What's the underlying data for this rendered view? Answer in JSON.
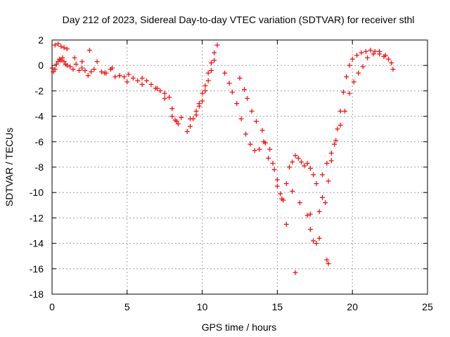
{
  "chart_data": {
    "type": "scatter",
    "title": "Day 212 of 2023, Sidereal Day-to-day VTEC variation (SDTVAR) for receiver sthl",
    "xlabel": "GPS time / hours",
    "ylabel": "SDTVAR / TECUs",
    "xlim": [
      0,
      25
    ],
    "ylim": [
      -18,
      2
    ],
    "xticks": [
      0,
      5,
      10,
      15,
      20,
      25
    ],
    "yticks": [
      -18,
      -16,
      -14,
      -12,
      -10,
      -8,
      -6,
      -4,
      -2,
      0,
      2
    ],
    "grid": true,
    "marker": "+",
    "color": "#ff0000",
    "series": [
      {
        "name": "sthl",
        "x": [
          0.0,
          0.1,
          0.2,
          0.3,
          0.4,
          0.5,
          0.6,
          0.7,
          0.8,
          0.9,
          1.0,
          1.2,
          1.4,
          1.6,
          1.8,
          2.0,
          2.2,
          2.4,
          2.6,
          2.8,
          3.0,
          3.3,
          3.6,
          3.9,
          4.2,
          4.5,
          4.8,
          5.1,
          5.4,
          5.7,
          6.0,
          6.3,
          6.6,
          6.9,
          7.2,
          7.5,
          7.8,
          8.0,
          8.2,
          8.4,
          8.6,
          9.0,
          9.2,
          9.4,
          9.6,
          9.8,
          10.0,
          10.2,
          10.4,
          10.6,
          10.8,
          11.0,
          11.5,
          11.8,
          12.0,
          12.3,
          12.6,
          12.9,
          13.2,
          13.5,
          13.8,
          14.1,
          14.4,
          14.7,
          15.0,
          15.2,
          15.4,
          15.6,
          15.8,
          16.0,
          16.2,
          16.4,
          16.6,
          16.8,
          17.0,
          17.2,
          17.4,
          17.6,
          18.0,
          18.2,
          18.4,
          18.6,
          18.8,
          19.0,
          19.2,
          19.4,
          19.6,
          19.8,
          20.0,
          20.3,
          20.6,
          20.9,
          21.2,
          21.5,
          21.8,
          22.1,
          22.4,
          22.7,
          0.2,
          0.4,
          0.6,
          0.8,
          1.0,
          1.5,
          2.0,
          2.5,
          3.5,
          4.0,
          4.5,
          5.0,
          6.0,
          7.0,
          7.5,
          8.0,
          8.3,
          9.2,
          9.6,
          9.8,
          10.0,
          10.2,
          10.4,
          10.6,
          10.8,
          12.5,
          12.8,
          13.0,
          13.3,
          13.6,
          14.0,
          14.2,
          14.5,
          14.8,
          15.0,
          15.3,
          15.6,
          16.0,
          16.5,
          17.0,
          17.2,
          17.4,
          17.6,
          17.8,
          18.0,
          18.3,
          18.6,
          18.9,
          19.2,
          19.5,
          19.8,
          20.1,
          20.4,
          20.7,
          21.0,
          21.4,
          21.8,
          22.2,
          22.6,
          16.2,
          18.3,
          18.4,
          17.8,
          17.2
        ],
        "y": [
          -0.2,
          -0.5,
          -0.3,
          0.1,
          0.3,
          0.5,
          0.4,
          0.6,
          0.3,
          0.1,
          0.0,
          -0.1,
          -0.3,
          0.1,
          -0.4,
          -0.2,
          -0.4,
          -0.8,
          -0.5,
          -0.3,
          0.3,
          -0.5,
          -0.6,
          -0.3,
          -0.9,
          -0.8,
          -0.9,
          -0.7,
          -1.0,
          -1.2,
          -1.0,
          -1.2,
          -1.5,
          -1.8,
          -2.0,
          -2.2,
          -2.5,
          -3.4,
          -4.3,
          -4.6,
          -4.1,
          -5.2,
          -4.8,
          -4.2,
          -3.6,
          -3.0,
          -2.2,
          -1.6,
          -0.6,
          0.2,
          1.0,
          1.6,
          -0.6,
          -1.4,
          -2.1,
          -3.0,
          -4.2,
          -5.4,
          -6.2,
          -6.7,
          -6.6,
          -6.0,
          -7.3,
          -7.7,
          -9.0,
          -10.1,
          -10.6,
          -9.3,
          -8.0,
          -7.6,
          -7.1,
          -7.3,
          -7.6,
          -7.9,
          -7.7,
          -8.1,
          -8.6,
          -9.3,
          -10.4,
          -10.8,
          -9.1,
          -7.5,
          -6.2,
          -5.0,
          -3.6,
          -2.1,
          -0.9,
          0.0,
          0.5,
          0.8,
          1.0,
          1.1,
          1.2,
          1.1,
          0.9,
          0.7,
          0.5,
          -0.3,
          1.6,
          1.7,
          1.5,
          1.4,
          1.3,
          0.6,
          0.3,
          1.2,
          -0.6,
          -0.2,
          -0.8,
          -1.3,
          -1.5,
          -1.8,
          -2.6,
          -4.0,
          -4.4,
          -4.2,
          -3.9,
          -3.2,
          -2.8,
          -2.0,
          -1.2,
          -0.4,
          0.4,
          -1.0,
          -1.9,
          -2.6,
          -3.6,
          -4.4,
          -5.1,
          -6.1,
          -6.6,
          -8.2,
          -9.5,
          -10.5,
          -12.5,
          -9.9,
          -10.8,
          -11.8,
          -12.9,
          -13.8,
          -14.0,
          -11.5,
          -8.6,
          -7.7,
          -6.9,
          -5.9,
          -4.7,
          -3.6,
          -2.2,
          -1.3,
          -0.6,
          -0.1,
          0.6,
          0.9,
          1.1,
          0.8,
          0.2,
          -16.3,
          -15.3,
          -15.6,
          -13.6,
          -11.7
        ]
      }
    ]
  }
}
